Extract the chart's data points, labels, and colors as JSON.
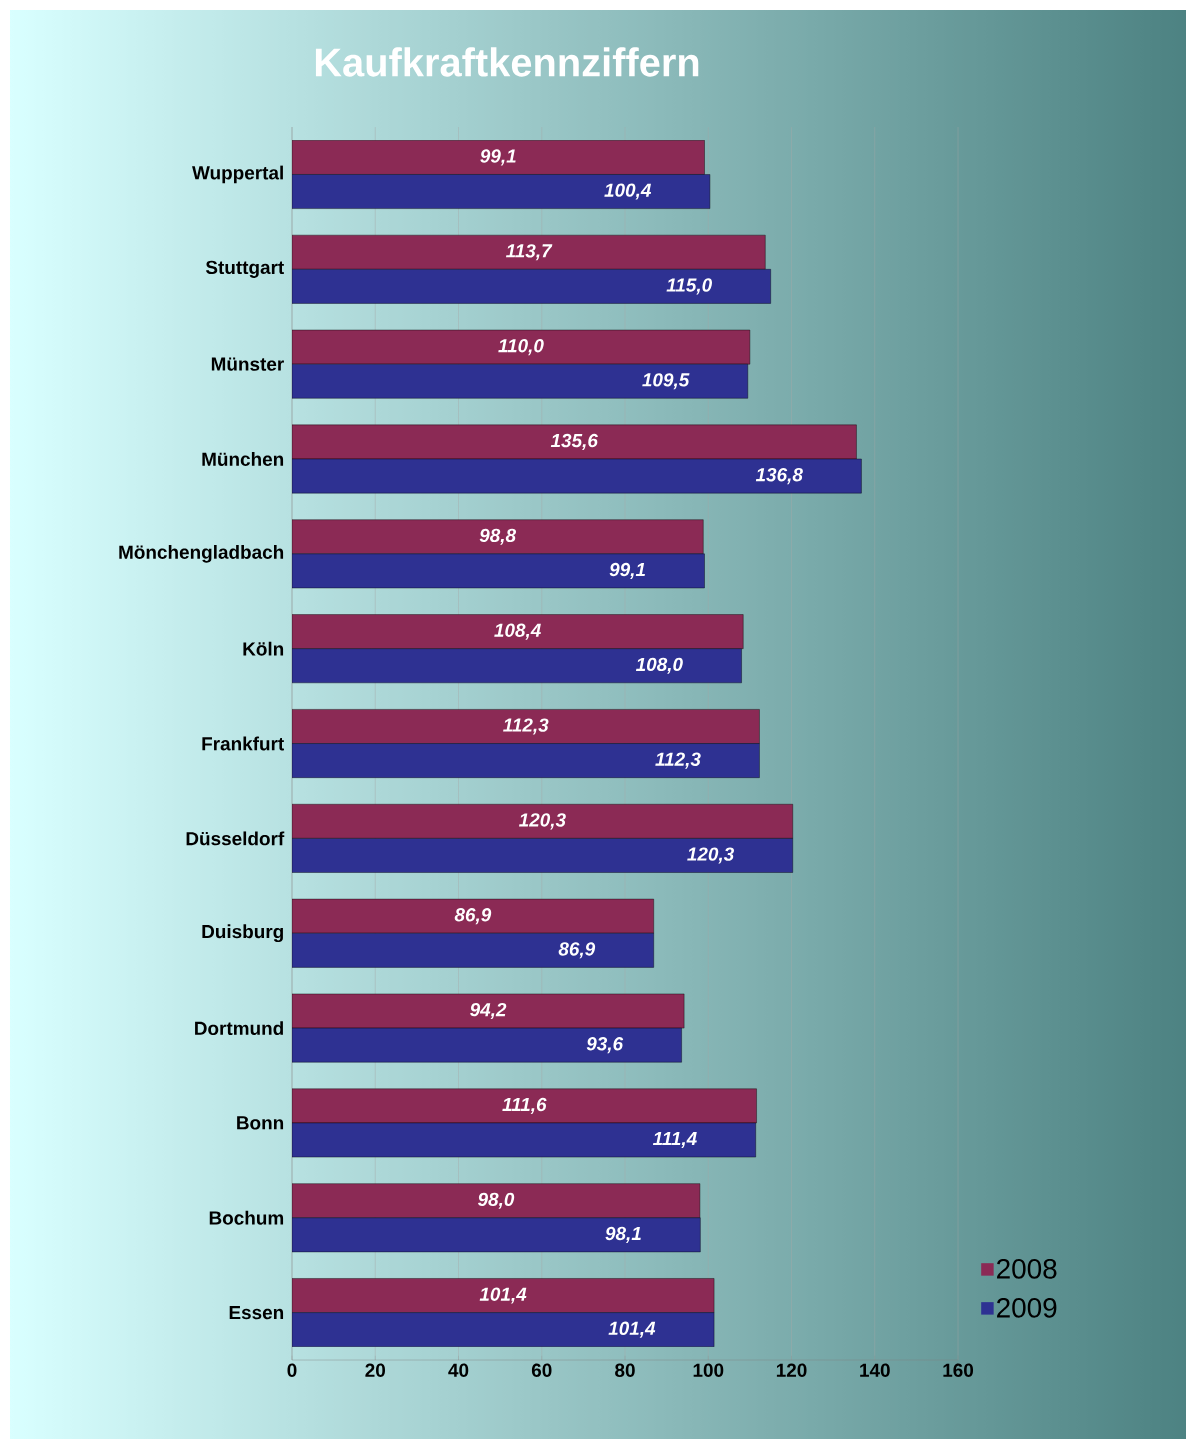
{
  "chart_data": {
    "type": "bar",
    "orientation": "horizontal",
    "title": "Kaufkraftkennziffern",
    "categories": [
      "Wuppertal",
      "Stuttgart",
      "Münster",
      "München",
      "Mönchengladbach",
      "Köln",
      "Frankfurt",
      "Düsseldorf",
      "Duisburg",
      "Dortmund",
      "Bonn",
      "Bochum",
      "Essen"
    ],
    "series": [
      {
        "name": "2008",
        "color": "#8b2a55",
        "values": [
          99.1,
          113.7,
          110.0,
          135.6,
          98.8,
          108.4,
          112.3,
          120.3,
          86.9,
          94.2,
          111.6,
          98.0,
          101.4
        ],
        "value_labels": [
          "99,1",
          "113,7",
          "110,0",
          "135,6",
          "98,8",
          "108,4",
          "112,3",
          "120,3",
          "86,9",
          "94,2",
          "111,6",
          "98,0",
          "101,4"
        ]
      },
      {
        "name": "2009",
        "color": "#2e3192",
        "values": [
          100.4,
          115.0,
          109.5,
          136.8,
          99.1,
          108.0,
          112.3,
          120.3,
          86.9,
          93.6,
          111.4,
          98.1,
          101.4
        ],
        "value_labels": [
          "100,4",
          "115,0",
          "109,5",
          "136,8",
          "99,1",
          "108,0",
          "112,3",
          "120,3",
          "86,9",
          "93,6",
          "111,4",
          "98,1",
          "101,4"
        ]
      }
    ],
    "xlim": [
      0,
      160
    ],
    "xticks": [
      0,
      20,
      40,
      60,
      80,
      100,
      120,
      140,
      160
    ],
    "grid": "x",
    "legend": "bottom right"
  }
}
